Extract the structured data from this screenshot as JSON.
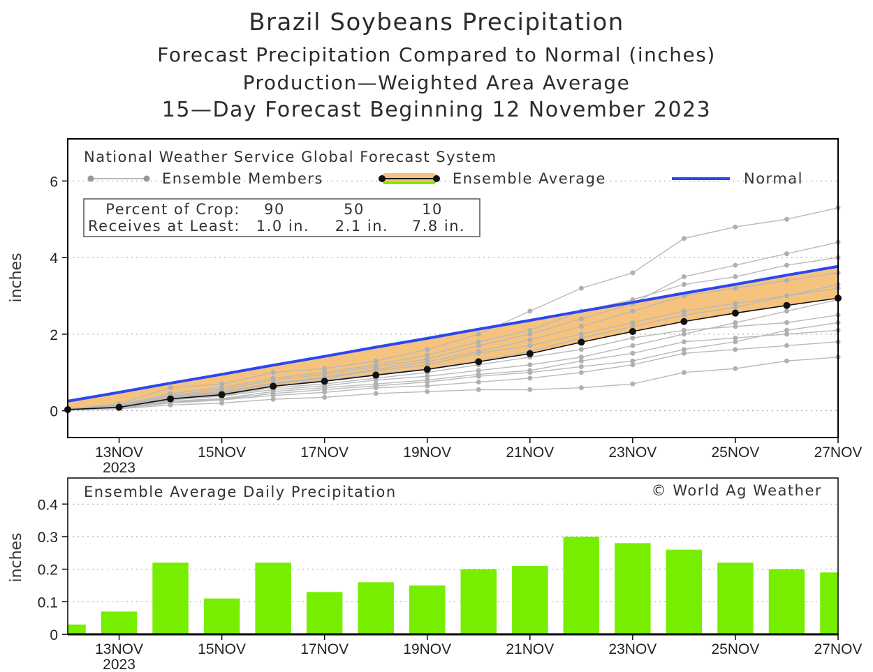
{
  "titles": {
    "main": "Brazil Soybeans Precipitation",
    "line2": "Forecast Precipitation Compared to Normal (inches)",
    "line3": "Production—Weighted Area Average",
    "line4": "15—Day Forecast Beginning 12 November 2023"
  },
  "top_panel": {
    "header": "National Weather Service Global Forecast System",
    "legend": {
      "members": "Ensemble Members",
      "average": "Ensemble Average",
      "normal": "Normal"
    },
    "crop_box": {
      "row1_label": "Percent of Crop:",
      "row1_values": [
        "90",
        "50",
        "10"
      ],
      "row2_label": "Receives at Least:",
      "row2_values": [
        "1.0 in.",
        "2.1 in.",
        "7.8 in."
      ]
    }
  },
  "bottom_panel": {
    "header": "Ensemble Average Daily Precipitation",
    "credit": "© World Ag Weather"
  },
  "year_label": "2023",
  "colors": {
    "normal": "#2a47f0",
    "average": "#111111",
    "band": "#f6c37e",
    "member": "#b9b9b9",
    "bar": "#77ee00"
  },
  "chart_data": [
    {
      "type": "line",
      "title": "Forecast Precipitation Compared to Normal (inches)",
      "ylabel": "inches",
      "xlabel": "",
      "ylim": [
        -0.7,
        7.1
      ],
      "yticks": [
        0,
        2,
        4,
        6
      ],
      "x": [
        12,
        13,
        14,
        15,
        16,
        17,
        18,
        19,
        20,
        21,
        22,
        23,
        24,
        25,
        26,
        27
      ],
      "xticks": [
        {
          "x": 13,
          "label": "13NOV"
        },
        {
          "x": 15,
          "label": "15NOV"
        },
        {
          "x": 17,
          "label": "17NOV"
        },
        {
          "x": 19,
          "label": "19NOV"
        },
        {
          "x": 21,
          "label": "21NOV"
        },
        {
          "x": 23,
          "label": "23NOV"
        },
        {
          "x": 25,
          "label": "25NOV"
        },
        {
          "x": 27,
          "label": "27NOV"
        }
      ],
      "series": [
        {
          "name": "Normal",
          "values": [
            0.25,
            0.48,
            0.72,
            0.95,
            1.19,
            1.42,
            1.66,
            1.89,
            2.13,
            2.36,
            2.6,
            2.83,
            3.07,
            3.3,
            3.54,
            3.77
          ]
        },
        {
          "name": "Ensemble Average",
          "values": [
            0.03,
            0.09,
            0.31,
            0.42,
            0.64,
            0.77,
            0.93,
            1.08,
            1.28,
            1.49,
            1.79,
            2.07,
            2.33,
            2.55,
            2.75,
            2.94
          ]
        }
      ],
      "ensemble_members": [
        [
          0.02,
          0.05,
          0.15,
          0.2,
          0.3,
          0.35,
          0.45,
          0.5,
          0.55,
          0.55,
          0.6,
          0.7,
          1.0,
          1.1,
          1.3,
          1.4
        ],
        [
          0.02,
          0.06,
          0.2,
          0.28,
          0.4,
          0.48,
          0.6,
          0.65,
          0.75,
          0.85,
          1.0,
          1.2,
          1.5,
          1.6,
          1.7,
          1.8
        ],
        [
          0.03,
          0.08,
          0.25,
          0.32,
          0.5,
          0.6,
          0.7,
          0.8,
          0.95,
          1.05,
          1.3,
          1.5,
          1.8,
          1.9,
          2.0,
          2.1
        ],
        [
          0.03,
          0.1,
          0.3,
          0.4,
          0.6,
          0.7,
          0.85,
          1.0,
          1.2,
          1.4,
          1.6,
          1.9,
          2.1,
          2.2,
          2.3,
          2.5
        ],
        [
          0.04,
          0.12,
          0.35,
          0.48,
          0.7,
          0.85,
          1.05,
          1.2,
          1.5,
          1.7,
          2.0,
          2.3,
          2.6,
          2.8,
          3.0,
          3.2
        ],
        [
          0.05,
          0.15,
          0.45,
          0.6,
          0.85,
          1.0,
          1.2,
          1.45,
          1.8,
          2.1,
          2.6,
          2.9,
          3.3,
          3.5,
          3.8,
          4.0
        ],
        [
          0.05,
          0.18,
          0.6,
          0.7,
          1.0,
          1.1,
          1.3,
          1.6,
          2.0,
          2.6,
          3.2,
          3.6,
          4.5,
          4.8,
          5.0,
          5.3
        ],
        [
          0.04,
          0.14,
          0.4,
          0.55,
          0.8,
          0.95,
          1.15,
          1.35,
          1.7,
          2.0,
          2.4,
          2.8,
          3.5,
          3.8,
          4.1,
          4.4
        ],
        [
          0.03,
          0.11,
          0.33,
          0.45,
          0.65,
          0.8,
          0.95,
          1.1,
          1.3,
          1.55,
          1.9,
          2.2,
          2.5,
          2.7,
          3.0,
          3.3
        ],
        [
          0.02,
          0.07,
          0.22,
          0.3,
          0.45,
          0.55,
          0.65,
          0.75,
          0.9,
          1.0,
          1.15,
          1.3,
          1.6,
          1.8,
          2.1,
          2.3
        ],
        [
          0.03,
          0.09,
          0.28,
          0.38,
          0.55,
          0.65,
          0.8,
          0.9,
          1.05,
          1.2,
          1.4,
          1.7,
          2.0,
          2.3,
          2.6,
          2.9
        ],
        [
          0.04,
          0.13,
          0.38,
          0.5,
          0.72,
          0.88,
          1.08,
          1.28,
          1.55,
          1.85,
          2.2,
          2.6,
          3.0,
          3.2,
          3.4,
          3.6
        ]
      ]
    },
    {
      "type": "bar",
      "title": "Ensemble Average Daily Precipitation",
      "ylabel": "inches",
      "xlabel": "",
      "ylim": [
        0,
        0.48
      ],
      "yticks": [
        0,
        0.1,
        0.2,
        0.3,
        0.4
      ],
      "x": [
        12,
        13,
        14,
        15,
        16,
        17,
        18,
        19,
        20,
        21,
        22,
        23,
        24,
        25,
        26,
        27
      ],
      "values": [
        0.03,
        0.07,
        0.22,
        0.11,
        0.22,
        0.13,
        0.16,
        0.15,
        0.2,
        0.21,
        0.3,
        0.28,
        0.26,
        0.22,
        0.2,
        0.19
      ]
    }
  ]
}
